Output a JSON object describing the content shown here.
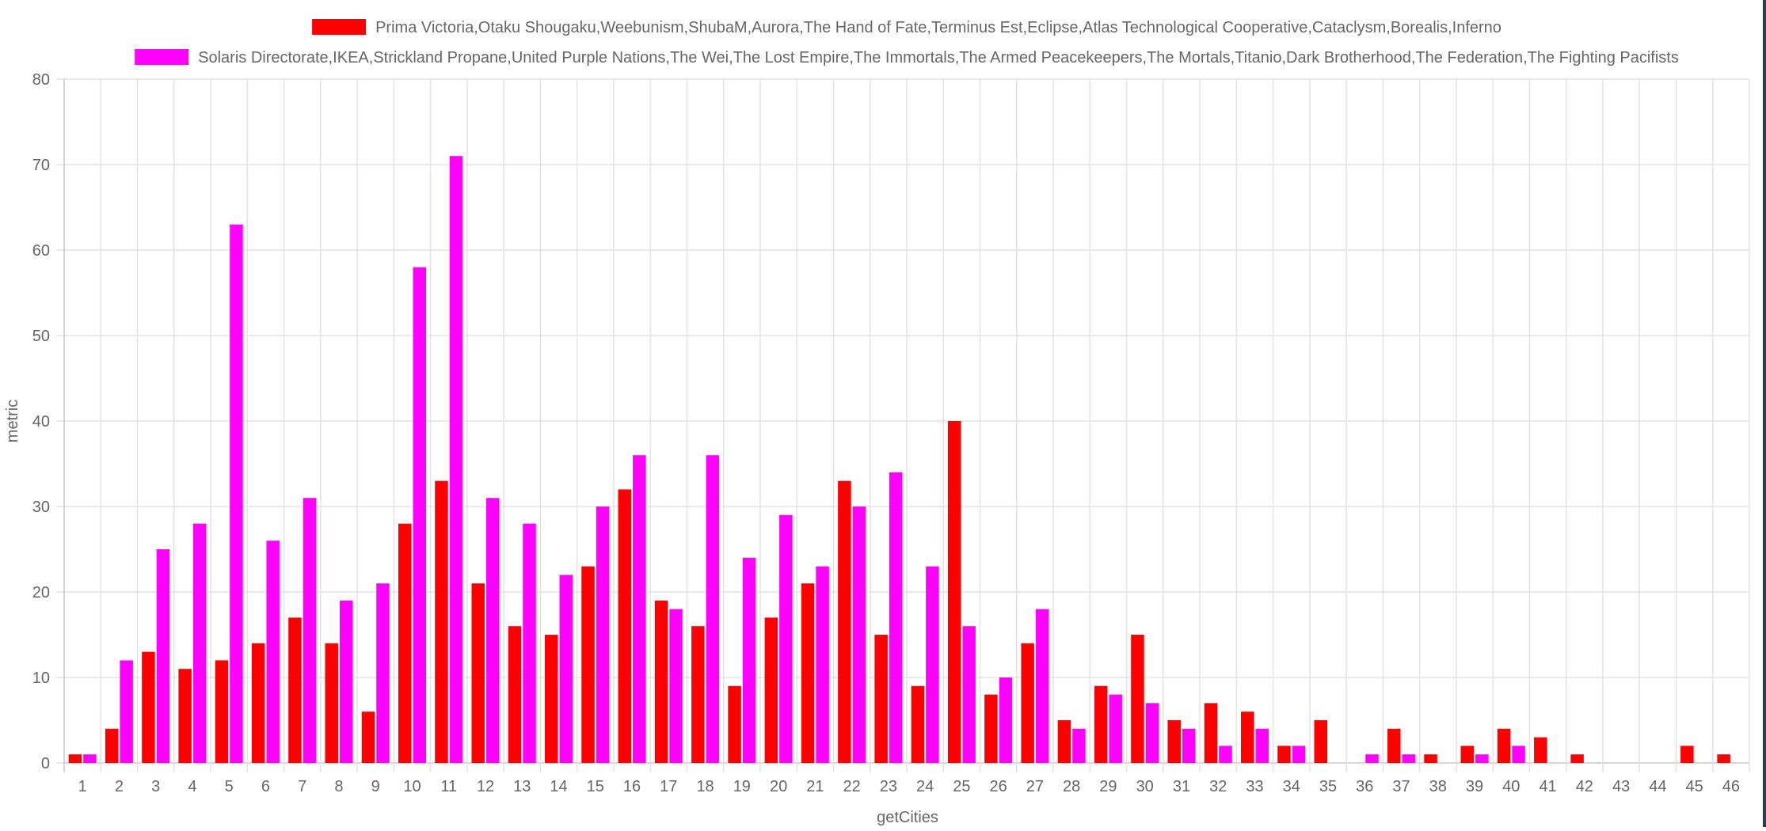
{
  "chart_data": {
    "type": "bar",
    "xlabel": "getCities",
    "ylabel": "metric",
    "ylim": [
      0,
      80
    ],
    "yticks": [
      0,
      10,
      20,
      30,
      40,
      50,
      60,
      70,
      80
    ],
    "grid": true,
    "legend_position": "top",
    "categories": [
      "1",
      "2",
      "3",
      "4",
      "5",
      "6",
      "7",
      "8",
      "9",
      "10",
      "11",
      "12",
      "13",
      "14",
      "15",
      "16",
      "17",
      "18",
      "19",
      "20",
      "21",
      "22",
      "23",
      "24",
      "25",
      "26",
      "27",
      "28",
      "29",
      "30",
      "31",
      "32",
      "33",
      "34",
      "35",
      "36",
      "37",
      "38",
      "39",
      "40",
      "41",
      "42",
      "43",
      "44",
      "45",
      "46"
    ],
    "series": [
      {
        "name": "Prima Victoria,Otaku Shougaku,Weebunism,ShubaM,Aurora,The Hand of Fate,Terminus Est,Eclipse,Atlas Technological Cooperative,Cataclysm,Borealis,Inferno",
        "color": "#ff0000",
        "values": [
          1,
          4,
          13,
          11,
          12,
          14,
          17,
          14,
          6,
          28,
          33,
          21,
          16,
          15,
          23,
          32,
          19,
          16,
          9,
          17,
          21,
          33,
          15,
          9,
          40,
          8,
          14,
          5,
          9,
          15,
          5,
          7,
          6,
          2,
          5,
          0,
          4,
          1,
          2,
          4,
          3,
          1,
          0,
          0,
          2,
          1
        ]
      },
      {
        "name": "Solaris Directorate,IKEA,Strickland Propane,United Purple Nations,The Wei,The Lost Empire,The Immortals,The Armed Peacekeepers,The Mortals,Titanio,Dark Brotherhood,The Federation,The Fighting Pacifists",
        "color": "#ff00ff",
        "values": [
          1,
          12,
          25,
          28,
          63,
          26,
          31,
          19,
          21,
          58,
          71,
          31,
          28,
          22,
          30,
          36,
          18,
          36,
          24,
          29,
          23,
          30,
          34,
          23,
          16,
          10,
          18,
          4,
          8,
          7,
          4,
          2,
          4,
          2,
          0,
          1,
          1,
          0,
          1,
          2,
          0,
          0,
          0,
          0,
          0,
          0
        ]
      }
    ]
  }
}
